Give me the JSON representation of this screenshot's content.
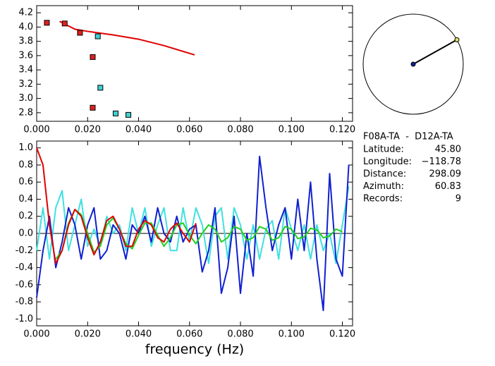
{
  "chart_data": [
    {
      "type": "scatter",
      "xlim": [
        0,
        0.124
      ],
      "ylim": [
        2.68,
        4.3
      ],
      "xticks": [
        {
          "value": 0,
          "label": "0.000"
        },
        {
          "value": 0.02,
          "label": "0.020"
        },
        {
          "value": 0.04,
          "label": "0.040"
        },
        {
          "value": 0.06,
          "label": "0.060"
        },
        {
          "value": 0.08,
          "label": "0.080"
        },
        {
          "value": 0.1,
          "label": "0.100"
        },
        {
          "value": 0.12,
          "label": "0.120"
        }
      ],
      "yticks": [
        2.8,
        {
          "value": 3,
          "label": "3.0"
        },
        3.2,
        3.4,
        3.6,
        3.8,
        {
          "value": 4,
          "label": "4.0"
        },
        4.2
      ],
      "series": [
        {
          "mode": "line",
          "color": "#e00000",
          "x": [
            0.009,
            0.015,
            0.02,
            0.03,
            0.04,
            0.05,
            0.062
          ],
          "values": [
            4.08,
            3.97,
            3.94,
            3.89,
            3.83,
            3.74,
            3.61
          ]
        },
        {
          "mode": "marker",
          "color": "#e02020",
          "x": [
            0.004,
            0.011,
            0.017,
            0.022,
            0.022
          ],
          "values": [
            4.06,
            4.05,
            3.92,
            3.58,
            2.87
          ]
        },
        {
          "mode": "marker",
          "color": "#40d0d0",
          "x": [
            0.024,
            0.025,
            0.031,
            0.036
          ],
          "values": [
            3.87,
            3.15,
            2.79,
            2.77
          ]
        }
      ]
    },
    {
      "type": "line",
      "x_label": "frequency (Hz)",
      "xlim": [
        0,
        0.124
      ],
      "ylim": [
        -1.08,
        1.08
      ],
      "zero_line": true,
      "xticks": [
        {
          "value": 0,
          "label": "0.000"
        },
        {
          "value": 0.02,
          "label": "0.020"
        },
        {
          "value": 0.04,
          "label": "0.040"
        },
        {
          "value": 0.06,
          "label": "0.060"
        },
        {
          "value": 0.08,
          "label": "0.080"
        },
        {
          "value": 0.1,
          "label": "0.100"
        },
        {
          "value": 0.12,
          "label": "0.120"
        }
      ],
      "yticks": [
        {
          "value": -1,
          "label": "-1.0"
        },
        -0.8,
        -0.6,
        -0.4,
        -0.2,
        {
          "value": 0,
          "label": "0.0"
        },
        0.2,
        0.4,
        0.6,
        0.8,
        {
          "value": 1,
          "label": "1.0"
        }
      ],
      "x": [
        0,
        0.0025,
        0.005,
        0.0075,
        0.01,
        0.0125,
        0.015,
        0.0175,
        0.02,
        0.0225,
        0.025,
        0.0275,
        0.03,
        0.0325,
        0.035,
        0.0375,
        0.04,
        0.0425,
        0.045,
        0.0475,
        0.05,
        0.0525,
        0.055,
        0.0575,
        0.06,
        0.0625,
        0.065,
        0.0675,
        0.07,
        0.0725,
        0.075,
        0.0775,
        0.08,
        0.0825,
        0.085,
        0.0875,
        0.09,
        0.0925,
        0.095,
        0.0975,
        0.1,
        0.1025,
        0.105,
        0.1075,
        0.11,
        0.1125,
        0.115,
        0.1175,
        0.12,
        0.1225
      ],
      "series": [
        {
          "color": "#40e0e0",
          "values": [
            -0.2,
            0.3,
            -0.3,
            0.3,
            0.5,
            -0.2,
            0.1,
            0.4,
            -0.15,
            0.05,
            -0.15,
            0.2,
            0,
            0.1,
            -0.2,
            0.3,
            0,
            0.3,
            -0.15,
            0.1,
            0.3,
            -0.2,
            -0.2,
            0.3,
            -0.1,
            0.3,
            0.1,
            -0.35,
            0.2,
            0.3,
            -0.3,
            0.3,
            0.1,
            -0.3,
            0.1,
            -0.3,
            0.05,
            0.15,
            -0.3,
            0.3,
            0.05,
            -0.2,
            0.1,
            -0.3,
            0.1,
            -0.2,
            0,
            -0.35,
            0.1,
            0.55
          ]
        },
        {
          "color": "#1020d0",
          "values": [
            -0.75,
            -0.2,
            0.2,
            -0.4,
            -0.1,
            0.3,
            0.1,
            -0.3,
            0.1,
            0.3,
            -0.3,
            -0.2,
            0.1,
            0,
            -0.3,
            0.1,
            0,
            0.2,
            -0.1,
            0.3,
            0,
            -0.1,
            0.2,
            -0.1,
            0.05,
            0.1,
            -0.45,
            -0.2,
            0.3,
            -0.7,
            -0.4,
            0.2,
            -0.7,
            0,
            -0.5,
            0.9,
            0.3,
            -0.2,
            0.1,
            0.3,
            -0.3,
            0.4,
            -0.2,
            0.6,
            -0.3,
            -0.9,
            0.7,
            -0.3,
            -0.5,
            0.8
          ]
        },
        {
          "color": "#20d020",
          "values": [
            null,
            null,
            null,
            -0.3,
            -0.2,
            0.12,
            0.28,
            0.22,
            0,
            -0.22,
            -0.15,
            0.1,
            0.18,
            0.05,
            -0.12,
            -0.18,
            -0.02,
            0.12,
            0.12,
            -0.02,
            -0.15,
            -0.05,
            0.1,
            0.12,
            -0.02,
            -0.12,
            0,
            0.1,
            0.05,
            -0.1,
            -0.05,
            0.08,
            0.05,
            -0.08,
            -0.05,
            0.08,
            0.05,
            -0.08,
            -0.05,
            0.08,
            0.05,
            -0.06,
            -0.04,
            0.06,
            0.04,
            -0.05,
            -0.03,
            0.05,
            0.02,
            null
          ]
        },
        {
          "color": "#e00000",
          "values": [
            1,
            0.8,
            0.1,
            -0.35,
            -0.2,
            0.1,
            0.28,
            0.2,
            -0.05,
            -0.25,
            -0.1,
            0.15,
            0.2,
            0.05,
            -0.15,
            -0.15,
            0.05,
            0.15,
            0.1,
            -0.05,
            -0.1,
            0.05,
            0.12,
            0,
            -0.1,
            0.12,
            null,
            null,
            null,
            null,
            null,
            null,
            null,
            null,
            null,
            null,
            null,
            null,
            null,
            null,
            null,
            null,
            null,
            null,
            null,
            null,
            null,
            null,
            null,
            null
          ]
        }
      ]
    }
  ],
  "station": {
    "pair": "F08A-TA  -  D12A-TA",
    "azimuth": 60.83,
    "fields": [
      {
        "label": "Latitude:",
        "value": "45.80"
      },
      {
        "label": "Longitude:",
        "value": "−118.78"
      },
      {
        "label": "Distance:",
        "value": "298.09"
      },
      {
        "label": "Azimuth:",
        "value": "60.83"
      },
      {
        "label": "Records:",
        "value": "9"
      }
    ]
  }
}
